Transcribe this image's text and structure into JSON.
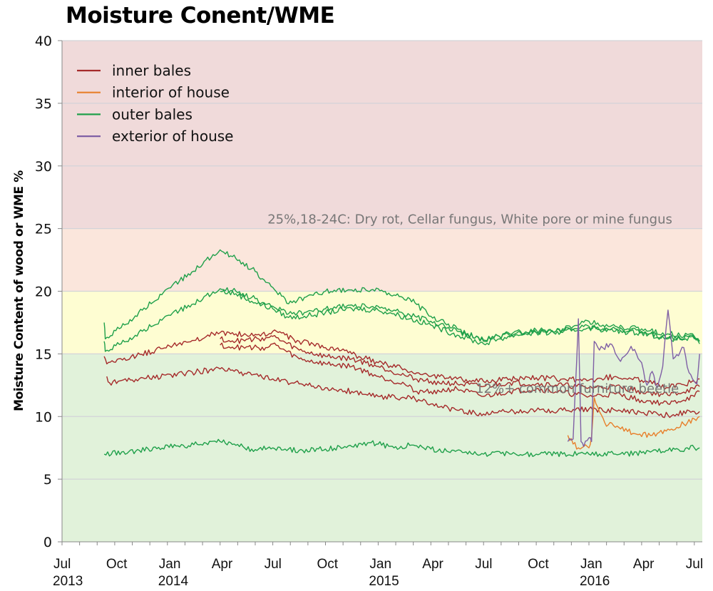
{
  "chart_data": {
    "type": "line",
    "title": "Moisture Conent/WME",
    "xlabel": "",
    "ylabel": "Moisture Content of wood or WME %",
    "ylim": [
      0,
      40
    ],
    "yticks": [
      0,
      5,
      10,
      15,
      20,
      25,
      30,
      35,
      40
    ],
    "xticks": [
      {
        "label": "Jul",
        "year": "2013"
      },
      {
        "label": "Oct",
        "year": ""
      },
      {
        "label": "Jan",
        "year": "2014"
      },
      {
        "label": "Apr",
        "year": ""
      },
      {
        "label": "Jul",
        "year": ""
      },
      {
        "label": "Oct",
        "year": ""
      },
      {
        "label": "Jan",
        "year": "2015"
      },
      {
        "label": "Apr",
        "year": ""
      },
      {
        "label": "Jul",
        "year": ""
      },
      {
        "label": "Oct",
        "year": ""
      },
      {
        "label": "Jan",
        "year": "2016"
      },
      {
        "label": "Apr",
        "year": ""
      },
      {
        "label": "Jul",
        "year": ""
      }
    ],
    "xrange_quarters": [
      0,
      12.15
    ],
    "grid": true,
    "legend_position": "upper-left",
    "bands": [
      {
        "from": 25,
        "to": 40,
        "color": "#f0dada"
      },
      {
        "from": 20,
        "to": 25,
        "color": "#fbe6dc"
      },
      {
        "from": 15,
        "to": 20,
        "color": "#fefdd2"
      },
      {
        "from": 0,
        "to": 15,
        "color": "#e1f2da"
      }
    ],
    "annotations": [
      {
        "text": "25%,18-24C: Dry rot, Cellar fungus, White pore or mine fungus",
        "x_quarter": 3.9,
        "y": 25.4
      },
      {
        "text": "12%+ common furniture beetle",
        "x_quarter": 7.85,
        "y": 11.9
      }
    ],
    "series": [
      {
        "name": "inner bales",
        "color": "#a52a2a",
        "lines": [
          {
            "x": [
              0.8,
              0.85,
              3.0,
              3.3,
              3.5,
              3.9,
              4.0,
              4.5,
              5.0,
              5.5,
              6.0,
              6.5,
              6.7,
              7.0,
              7.5,
              8.0,
              8.5,
              9.0,
              9.5,
              10.0,
              10.5,
              11.0,
              11.5,
              12.0,
              12.1
            ],
            "y": [
              14.8,
              14.2,
              16.7,
              16.6,
              16.5,
              16.5,
              16.8,
              16.0,
              15.5,
              15.0,
              14.3,
              13.8,
              13.4,
              13.2,
              13.0,
              12.8,
              13.0,
              13.1,
              13.0,
              12.9,
              13.2,
              12.9,
              12.3,
              12.8,
              13.0
            ]
          },
          {
            "x": [
              3.0,
              3.3,
              3.9,
              4.0,
              4.5,
              5.0,
              5.5,
              6.0,
              6.5,
              6.7,
              7.0,
              7.5,
              8.0,
              8.5,
              9.0,
              9.5,
              10.0,
              10.5,
              11.0,
              11.5,
              12.0,
              12.1
            ],
            "y": [
              16.2,
              16.0,
              16.3,
              16.4,
              15.3,
              14.8,
              14.6,
              14.0,
              13.3,
              13.0,
              12.8,
              12.6,
              12.4,
              12.7,
              12.6,
              12.5,
              12.3,
              12.4,
              12.0,
              11.7,
              12.2,
              12.4
            ]
          },
          {
            "x": [
              3.0,
              3.3,
              3.9,
              4.0,
              4.5,
              5.0,
              5.5,
              6.0,
              6.5,
              6.7,
              7.0,
              7.5,
              8.0,
              8.5,
              9.0,
              9.5,
              10.0,
              10.5,
              11.0,
              11.5,
              12.0,
              12.1
            ],
            "y": [
              15.7,
              15.5,
              15.5,
              15.8,
              14.6,
              14.2,
              14.0,
              13.2,
              12.6,
              12.0,
              12.0,
              12.2,
              11.6,
              12.0,
              12.2,
              11.9,
              11.6,
              11.8,
              11.3,
              11.0,
              11.6,
              12.0
            ]
          },
          {
            "x": [
              0.85,
              0.9,
              3.0,
              3.5,
              4.0,
              4.5,
              5.0,
              5.5,
              6.0,
              6.5,
              6.7,
              7.0,
              7.5,
              8.0,
              8.5,
              9.0,
              9.5,
              10.0,
              10.5,
              11.0,
              11.5,
              12.0,
              12.1
            ],
            "y": [
              13.2,
              12.7,
              13.8,
              13.4,
              13.0,
              12.6,
              12.3,
              12.0,
              11.6,
              11.5,
              11.4,
              11.0,
              10.5,
              10.2,
              10.4,
              10.5,
              10.5,
              10.6,
              10.5,
              10.3,
              10.1,
              10.4,
              10.4
            ]
          }
        ]
      },
      {
        "name": "interior of house",
        "color": "#e87f2a",
        "lines": [
          {
            "x": [
              9.6,
              9.7,
              9.8,
              9.9,
              10.0,
              10.05,
              10.1,
              10.3,
              10.6,
              10.9,
              11.2,
              11.5,
              11.8,
              12.1
            ],
            "y": [
              8.5,
              7.8,
              7.5,
              7.6,
              7.5,
              8.4,
              11.5,
              9.5,
              9.0,
              8.6,
              8.5,
              9.0,
              9.4,
              10.0
            ]
          }
        ]
      },
      {
        "name": "outer bales",
        "color": "#1fa04a",
        "lines": [
          {
            "x": [
              0.8,
              0.82,
              3.0,
              3.3,
              3.6,
              4.0,
              4.3,
              4.6,
              5.0,
              5.5,
              6.0,
              6.3,
              6.6,
              7.0,
              7.5,
              8.0,
              8.3,
              8.6,
              9.0,
              9.5,
              10.0,
              10.5,
              11.0,
              11.5,
              12.0,
              12.1
            ],
            "y": [
              17.5,
              16.2,
              23.3,
              22.6,
              21.8,
              20.3,
              19.0,
              19.5,
              20.0,
              20.1,
              20.2,
              19.7,
              19.4,
              18.0,
              17.0,
              16.0,
              16.4,
              16.8,
              16.7,
              17.0,
              17.6,
              17.2,
              17.0,
              16.6,
              16.4,
              16.0
            ]
          },
          {
            "x": [
              0.8,
              0.82,
              3.0,
              3.3,
              3.6,
              4.0,
              4.3,
              4.6,
              5.0,
              5.5,
              6.0,
              6.3,
              6.6,
              7.0,
              7.5,
              8.0,
              8.3,
              8.6,
              9.0,
              9.5,
              10.0,
              10.5,
              11.0,
              11.5,
              12.0,
              12.1
            ],
            "y": [
              16.0,
              15.2,
              20.2,
              20.0,
              19.5,
              18.8,
              18.2,
              18.3,
              18.6,
              18.9,
              18.8,
              18.5,
              18.1,
              17.6,
              16.8,
              16.1,
              16.4,
              16.6,
              16.9,
              16.9,
              17.2,
              17.0,
              16.8,
              16.3,
              16.3,
              16.0
            ]
          },
          {
            "x": [
              3.0,
              3.3,
              3.6,
              4.0,
              4.3,
              4.6,
              5.0,
              5.5,
              6.0,
              6.3,
              6.6,
              7.0,
              7.5,
              8.0,
              8.3,
              8.6,
              9.0,
              9.5,
              10.0,
              10.5,
              11.0,
              11.5,
              12.0,
              12.1
            ],
            "y": [
              20.0,
              19.8,
              19.2,
              18.6,
              17.9,
              18.0,
              18.3,
              18.6,
              18.5,
              18.2,
              17.8,
              17.3,
              16.5,
              15.8,
              16.2,
              16.5,
              16.7,
              16.7,
              17.1,
              16.8,
              16.7,
              16.2,
              16.2,
              15.8
            ]
          },
          {
            "x": [
              0.8,
              3.0,
              3.3,
              3.6,
              4.0,
              4.5,
              5.0,
              5.5,
              5.8,
              6.0,
              6.3,
              6.6,
              7.0,
              7.5,
              8.0,
              8.5,
              9.0,
              9.5,
              10.0,
              10.5,
              11.0,
              11.5,
              12.0,
              12.1
            ],
            "y": [
              7.0,
              8.0,
              7.7,
              7.4,
              7.5,
              7.3,
              7.4,
              7.6,
              7.9,
              7.8,
              7.5,
              7.7,
              7.4,
              7.3,
              7.0,
              7.0,
              7.0,
              7.0,
              7.0,
              7.0,
              7.1,
              7.3,
              7.5,
              7.5
            ]
          }
        ]
      },
      {
        "name": "exterior of house",
        "color": "#7f5fa5",
        "lines": [
          {
            "x": [
              9.6,
              9.7,
              9.8,
              9.85,
              9.9,
              10.0,
              10.05,
              10.1,
              10.2,
              10.4,
              10.6,
              10.8,
              11.0,
              11.1,
              11.2,
              11.3,
              11.4,
              11.5,
              11.6,
              11.8,
              11.9,
              12.0,
              12.05,
              12.1
            ],
            "y": [
              8.0,
              8.2,
              17.8,
              8.0,
              7.6,
              8.3,
              8.0,
              16.0,
              15.3,
              15.8,
              14.4,
              15.6,
              14.3,
              12.5,
              13.6,
              12.3,
              14.0,
              18.5,
              14.6,
              15.5,
              13.5,
              12.8,
              12.6,
              15.0
            ]
          }
        ]
      }
    ]
  }
}
